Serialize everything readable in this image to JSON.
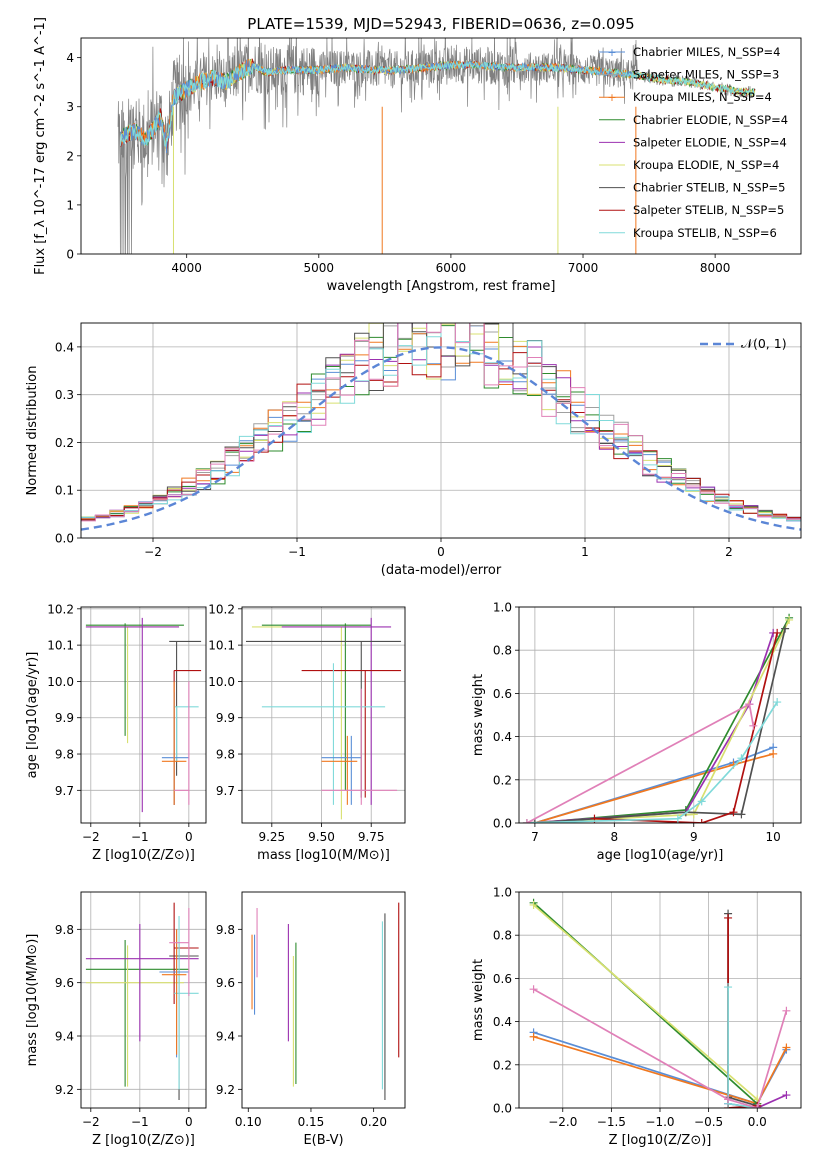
{
  "figure_title": "PLATE=1539, MJD=52943, FIBERID=0636, z=0.095",
  "colors": {
    "Chabrier MILES": "#5a8ed6",
    "Salpeter MILES": "#a0a0a0",
    "Kroupa MILES": "#f07820",
    "Chabrier ELODIE": "#2e8b2e",
    "Salpeter ELODIE": "#9b30b0",
    "Kroupa ELODIE": "#d8e070",
    "Chabrier STELIB": "#505050",
    "Salpeter STELIB": "#b01010",
    "Kroupa STELIB": "#80dada",
    "extra_pink": "#e080b8"
  },
  "chart_data": [
    {
      "type": "line",
      "title": "PLATE=1539, MJD=52943, FIBERID=0636, z=0.095",
      "xlabel": "wavelength [Angstrom, rest frame]",
      "ylabel": "Flux [f_λ 10^-17 erg cm^-2 s^-1 A^-1]",
      "xlim": [
        3200,
        8650
      ],
      "ylim": [
        0,
        4.4
      ],
      "xticks": [
        4000,
        5000,
        6000,
        7000,
        8000
      ],
      "yticks": [
        0,
        1,
        2,
        3,
        4
      ],
      "legend_position": "upper-right",
      "legend": [
        {
          "label": "Chabrier MILES, N_SSP=4"
        },
        {
          "label": "Salpeter MILES, N_SSP=3"
        },
        {
          "label": "Kroupa MILES, N_SSP=4"
        },
        {
          "label": "Chabrier ELODIE, N_SSP=4"
        },
        {
          "label": "Salpeter ELODIE, N_SSP=4"
        },
        {
          "label": "Kroupa ELODIE, N_SSP=4"
        },
        {
          "label": "Chabrier STELIB, N_SSP=5"
        },
        {
          "label": "Salpeter STELIB, N_SSP=5"
        },
        {
          "label": "Kroupa STELIB, N_SSP=6"
        }
      ],
      "continuum": {
        "wavelength": [
          3500,
          3550,
          3600,
          3700,
          3800,
          3850,
          3900,
          4000,
          4100,
          4200,
          4300,
          4400,
          4500,
          4600,
          4800,
          5000,
          5200,
          5400,
          5600,
          5800,
          6000,
          6200,
          6400,
          6600,
          6800,
          7000,
          7200,
          7400,
          7600,
          7800,
          8000,
          8200,
          8300
        ],
        "flux": [
          2.35,
          2.45,
          2.5,
          2.35,
          2.8,
          2.2,
          3.2,
          3.35,
          3.5,
          3.6,
          3.5,
          3.7,
          3.85,
          3.7,
          3.75,
          3.75,
          3.8,
          3.75,
          3.75,
          3.8,
          3.85,
          3.85,
          3.8,
          3.8,
          3.8,
          3.75,
          3.7,
          3.65,
          3.55,
          3.5,
          3.4,
          3.3,
          3.3
        ]
      }
    },
    {
      "type": "line",
      "xlabel": "(data-model)/error",
      "ylabel": "Normed distribution",
      "xlim": [
        -2.5,
        2.5
      ],
      "ylim": [
        0,
        0.45
      ],
      "xticks": [
        -2,
        -1,
        0,
        1,
        2
      ],
      "yticks": [
        0.0,
        0.1,
        0.2,
        0.3,
        0.4
      ],
      "grid": true,
      "legend_position": "upper-right",
      "legend": [
        {
          "label": "𝒩(0, 1)"
        }
      ],
      "gaussian": {
        "mean": 0,
        "sigma": 1
      }
    },
    {
      "type": "scatter",
      "xlabel": "Z [log10(Z/Z⊙)]",
      "ylabel": "age  [log10(age/yr)]",
      "xlim": [
        -2.2,
        0.35
      ],
      "ylim": [
        9.61,
        10.205
      ],
      "xticks": [
        -2,
        -1,
        0
      ],
      "yticks": [
        9.7,
        9.8,
        9.9,
        10.0,
        10.1,
        10.2
      ],
      "grid": true
    },
    {
      "type": "scatter",
      "xlabel": "mass [log10(M/M⊙)]",
      "ylabel": "",
      "xlim": [
        9.1,
        9.92
      ],
      "ylim": [
        9.61,
        10.205
      ],
      "xticks": [
        9.25,
        9.5,
        9.75
      ],
      "yticks": [
        9.7,
        9.8,
        9.9,
        10.0,
        10.1,
        10.2
      ],
      "grid": true
    },
    {
      "type": "line",
      "xlabel": "age  [log10(age/yr)]",
      "ylabel": "mass weight",
      "xlim": [
        6.8,
        10.35
      ],
      "ylim": [
        0,
        1.0
      ],
      "xticks": [
        7,
        8,
        9,
        10
      ],
      "yticks": [
        0.0,
        0.2,
        0.4,
        0.6,
        0.8,
        1.0
      ],
      "grid": true,
      "series": [
        {
          "color": "Chabrier MILES",
          "x": [
            7.0,
            9.5,
            10.0
          ],
          "y": [
            0.0,
            0.28,
            0.35
          ]
        },
        {
          "color": "Kroupa MILES",
          "x": [
            7.0,
            9.5,
            10.0
          ],
          "y": [
            0.0,
            0.27,
            0.32
          ]
        },
        {
          "color": "Chabrier ELODIE",
          "x": [
            7.0,
            8.9,
            10.2
          ],
          "y": [
            0.0,
            0.06,
            0.95
          ]
        },
        {
          "color": "Salpeter ELODIE",
          "x": [
            6.9,
            8.9,
            9.7,
            10.0
          ],
          "y": [
            0.0,
            0.05,
            0.55,
            0.88
          ]
        },
        {
          "color": "Kroupa ELODIE",
          "x": [
            6.9,
            9.0,
            10.2
          ],
          "y": [
            0.0,
            0.04,
            0.94
          ]
        },
        {
          "color": "Chabrier STELIB",
          "x": [
            7.0,
            8.9,
            9.6,
            10.15
          ],
          "y": [
            0.0,
            0.05,
            0.04,
            0.9
          ]
        },
        {
          "color": "Salpeter STELIB",
          "x": [
            7.75,
            9.1,
            9.5,
            10.05
          ],
          "y": [
            0.02,
            0.0,
            0.05,
            0.88
          ]
        },
        {
          "color": "Kroupa STELIB",
          "x": [
            6.9,
            8.8,
            9.1,
            9.6,
            10.05
          ],
          "y": [
            0.0,
            0.02,
            0.1,
            0.3,
            0.56
          ]
        },
        {
          "color": "extra_pink",
          "x": [
            6.9,
            9.7,
            9.75
          ],
          "y": [
            0.0,
            0.55,
            0.45
          ]
        }
      ]
    },
    {
      "type": "scatter",
      "xlabel": "Z [log10(Z/Z⊙)]",
      "ylabel": "mass [log10(M/M⊙)]",
      "xlim": [
        -2.2,
        0.35
      ],
      "ylim": [
        9.13,
        9.94
      ],
      "xticks": [
        -2,
        -1,
        0
      ],
      "yticks": [
        9.2,
        9.4,
        9.6,
        9.8
      ],
      "grid": true
    },
    {
      "type": "scatter",
      "xlabel": "E(B-V)",
      "ylabel": "",
      "xlim": [
        0.095,
        0.225
      ],
      "ylim": [
        9.13,
        9.94
      ],
      "xticks": [
        0.1,
        0.15,
        0.2
      ],
      "yticks": [
        9.2,
        9.4,
        9.6,
        9.8
      ],
      "grid": false
    },
    {
      "type": "line",
      "xlabel": "Z [log10(Z/Z⊙)]",
      "ylabel": "mass weight",
      "xlim": [
        -2.45,
        0.45
      ],
      "ylim": [
        0,
        1.0
      ],
      "xticks": [
        -2.0,
        -1.5,
        -1.0,
        -0.5,
        0.0
      ],
      "yticks": [
        0.0,
        0.2,
        0.4,
        0.6,
        0.8,
        1.0
      ],
      "grid": true,
      "series": [
        {
          "color": "Chabrier MILES",
          "x": [
            -2.3,
            0.0,
            0.3
          ],
          "y": [
            0.35,
            0.02,
            0.27
          ]
        },
        {
          "color": "Kroupa MILES",
          "x": [
            -2.3,
            0.0,
            0.3
          ],
          "y": [
            0.33,
            0.02,
            0.28
          ]
        },
        {
          "color": "Chabrier ELODIE",
          "x": [
            -2.3,
            0.0
          ],
          "y": [
            0.95,
            0.02
          ]
        },
        {
          "color": "Salpeter ELODIE",
          "x": [
            -0.3,
            0.0,
            0.3
          ],
          "y": [
            0.02,
            0.0,
            0.06
          ]
        },
        {
          "color": "Kroupa ELODIE",
          "x": [
            -2.3,
            0.0
          ],
          "y": [
            0.94,
            0.04
          ]
        },
        {
          "color": "Chabrier STELIB",
          "x": [
            -0.3,
            -0.3,
            0.0
          ],
          "y": [
            0.9,
            0.05,
            0.01
          ]
        },
        {
          "color": "Salpeter STELIB",
          "x": [
            -0.3,
            -0.3,
            0.0
          ],
          "y": [
            0.88,
            0.0,
            0.01
          ]
        },
        {
          "color": "Kroupa STELIB",
          "x": [
            -0.3,
            -0.3,
            0.0
          ],
          "y": [
            0.56,
            0.02,
            0.0
          ]
        },
        {
          "color": "extra_pink",
          "x": [
            -2.3,
            -0.3,
            0.0,
            0.3
          ],
          "y": [
            0.55,
            0.04,
            0.0,
            0.45
          ]
        }
      ]
    }
  ]
}
